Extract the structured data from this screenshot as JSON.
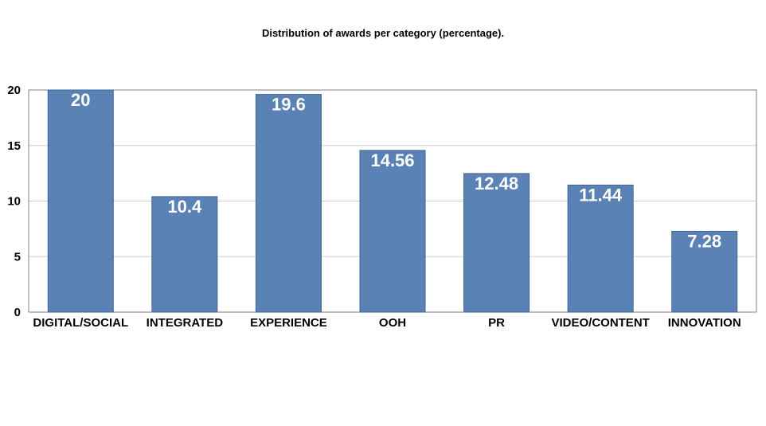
{
  "chart_data": {
    "type": "bar",
    "title": "Distribution of awards per category (percentage).",
    "categories": [
      "DIGITAL/SOCIAL",
      "INTEGRATED",
      "EXPERIENCE",
      "OOH",
      "PR",
      "VIDEO/CONTENT",
      "INNOVATION"
    ],
    "values": [
      20,
      10.4,
      19.6,
      14.56,
      12.48,
      11.44,
      7.28
    ],
    "data_labels": [
      "20",
      "10.4",
      "19.6",
      "14.56",
      "12.48",
      "11.44",
      "7.28"
    ],
    "y_ticks": [
      "0",
      "5",
      "10",
      "15",
      "20"
    ],
    "ylim": [
      0,
      20
    ],
    "xlabel": "",
    "ylabel": "",
    "grid": true,
    "legend": "none",
    "bar_color": "#5b82b5",
    "bar_edge_color": "#3f6593"
  }
}
